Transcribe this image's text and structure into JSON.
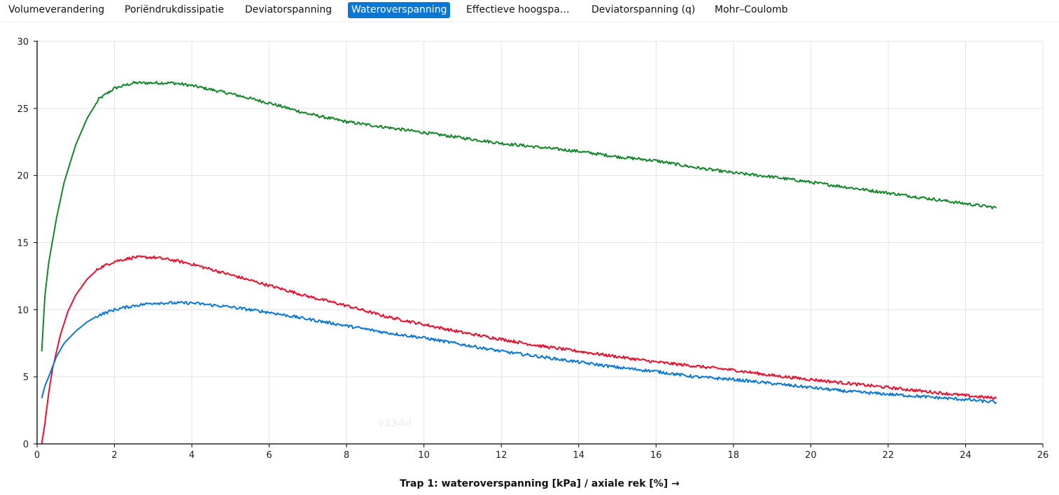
{
  "tabs": [
    {
      "label": "Volumeverandering",
      "active": false
    },
    {
      "label": "Poriëndrukdissipatie",
      "active": false
    },
    {
      "label": "Deviatorspanning",
      "active": false
    },
    {
      "label": "Wateroverspanning",
      "active": true
    },
    {
      "label": "Effectieve hoogspa…",
      "active": false
    },
    {
      "label": "Deviatorspanning (q)",
      "active": false
    },
    {
      "label": "Mohr–Coulomb",
      "active": false
    }
  ],
  "watermark": "v134d",
  "chart_data": {
    "type": "line",
    "xlabel": "Trap 1: wateroverspanning [kPa] / axiale rek [%] →",
    "ylabel": "",
    "xlim": [
      0,
      26
    ],
    "ylim": [
      0,
      30
    ],
    "xticks": [
      0,
      2,
      4,
      6,
      8,
      10,
      12,
      14,
      16,
      18,
      20,
      22,
      24,
      26
    ],
    "yticks": [
      0,
      5,
      10,
      15,
      20,
      25,
      30
    ],
    "grid": true,
    "series": [
      {
        "color": "#14862a",
        "x": [
          0.12,
          0.2,
          0.3,
          0.5,
          0.7,
          1.0,
          1.3,
          1.6,
          2.0,
          2.5,
          3.0,
          3.5,
          4.0,
          5.0,
          6.0,
          7.0,
          8.0,
          9.0,
          10.0,
          11.0,
          12.0,
          13.0,
          14.0,
          15.0,
          16.0,
          17.0,
          18.0,
          19.0,
          20.0,
          21.0,
          22.0,
          23.0,
          24.0,
          24.8
        ],
        "y": [
          6.9,
          11.0,
          13.5,
          16.8,
          19.5,
          22.3,
          24.3,
          25.7,
          26.5,
          26.9,
          26.9,
          26.9,
          26.7,
          26.1,
          25.4,
          24.6,
          24.0,
          23.6,
          23.2,
          22.8,
          22.4,
          22.1,
          21.8,
          21.4,
          21.1,
          20.6,
          20.2,
          19.9,
          19.5,
          19.1,
          18.7,
          18.3,
          17.9,
          17.6
        ]
      },
      {
        "color": "#e8112d",
        "x": [
          0.12,
          0.2,
          0.3,
          0.4,
          0.6,
          0.8,
          1.0,
          1.3,
          1.6,
          2.0,
          2.5,
          3.0,
          3.5,
          4.0,
          5.0,
          6.0,
          7.0,
          8.0,
          9.0,
          10.0,
          11.0,
          12.0,
          13.0,
          14.0,
          15.0,
          16.0,
          17.0,
          18.0,
          19.0,
          20.0,
          21.0,
          22.0,
          23.0,
          24.0,
          24.8
        ],
        "y": [
          0.0,
          1.5,
          3.8,
          5.6,
          8.1,
          9.9,
          11.1,
          12.3,
          13.1,
          13.6,
          13.9,
          13.9,
          13.7,
          13.4,
          12.6,
          11.8,
          11.0,
          10.3,
          9.5,
          8.9,
          8.3,
          7.8,
          7.3,
          6.9,
          6.5,
          6.1,
          5.8,
          5.5,
          5.1,
          4.8,
          4.5,
          4.2,
          3.9,
          3.6,
          3.4
        ]
      },
      {
        "color": "#0a77d5",
        "x": [
          0.12,
          0.2,
          0.3,
          0.5,
          0.7,
          1.0,
          1.3,
          1.6,
          2.0,
          2.5,
          3.0,
          3.5,
          4.0,
          5.0,
          6.0,
          7.0,
          8.0,
          9.0,
          10.0,
          11.0,
          12.0,
          13.0,
          14.0,
          15.0,
          16.0,
          17.0,
          18.0,
          19.0,
          20.0,
          21.0,
          22.0,
          23.0,
          24.0,
          24.8
        ],
        "y": [
          3.4,
          4.3,
          5.0,
          6.5,
          7.5,
          8.4,
          9.1,
          9.6,
          10.0,
          10.3,
          10.5,
          10.5,
          10.5,
          10.2,
          9.8,
          9.3,
          8.8,
          8.3,
          7.9,
          7.4,
          6.9,
          6.5,
          6.1,
          5.7,
          5.4,
          5.0,
          4.8,
          4.5,
          4.2,
          3.9,
          3.7,
          3.5,
          3.3,
          3.1
        ]
      }
    ]
  }
}
